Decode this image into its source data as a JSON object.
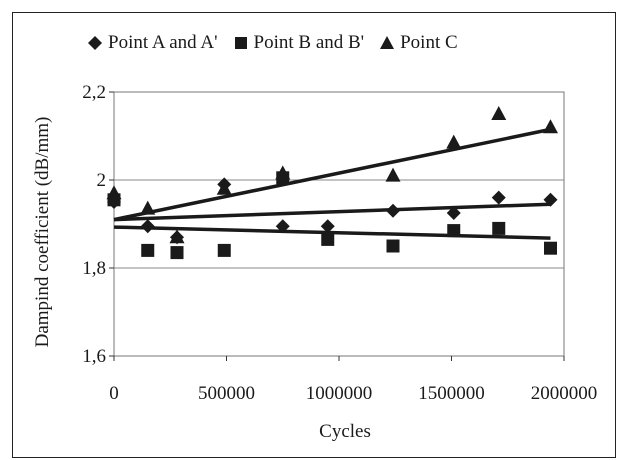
{
  "chart_data": {
    "type": "scatter",
    "title": "",
    "xlabel": "Cycles",
    "ylabel": "Dampind coefficient (dB/mm)",
    "xlim": [
      0,
      2000000
    ],
    "ylim": [
      1.6,
      2.2
    ],
    "x_ticks": [
      "0",
      "500000",
      "1000000",
      "1500000",
      "2000000"
    ],
    "y_ticks": [
      "1,6",
      "1,8",
      "2",
      "2,2"
    ],
    "grid": "horizontal",
    "legend_position": "top",
    "series": [
      {
        "name": "Point A and A'",
        "marker": "diamond",
        "color": "#1a1a1a",
        "x": [
          0,
          150000,
          280000,
          490000,
          750000,
          950000,
          1240000,
          1510000,
          1710000,
          1940000
        ],
        "y": [
          1.95,
          1.895,
          1.87,
          1.99,
          1.895,
          1.895,
          1.93,
          1.925,
          1.96,
          1.955
        ],
        "trendline": {
          "x": [
            0,
            1940000
          ],
          "y": [
            1.91,
            1.945
          ]
        }
      },
      {
        "name": "Point B and B'",
        "marker": "square",
        "color": "#1a1a1a",
        "x": [
          0,
          150000,
          280000,
          490000,
          750000,
          950000,
          1240000,
          1510000,
          1710000,
          1940000
        ],
        "y": [
          1.955,
          1.84,
          1.835,
          1.84,
          2.005,
          1.865,
          1.85,
          1.885,
          1.89,
          1.845
        ],
        "trendline": {
          "x": [
            0,
            1940000
          ],
          "y": [
            1.893,
            1.868
          ]
        }
      },
      {
        "name": "Point C",
        "marker": "triangle",
        "color": "#1a1a1a",
        "x": [
          0,
          150000,
          280000,
          490000,
          750000,
          1240000,
          1510000,
          1710000,
          1940000
        ],
        "y": [
          1.97,
          1.935,
          1.87,
          1.98,
          2.015,
          2.01,
          2.085,
          2.15,
          2.12
        ],
        "trendline": {
          "x": [
            0,
            1940000
          ],
          "y": [
            1.91,
            2.115
          ]
        }
      }
    ]
  }
}
